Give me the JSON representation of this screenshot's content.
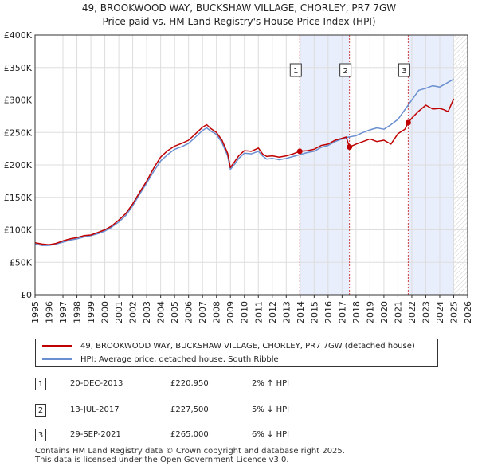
{
  "chart_data": {
    "type": "line",
    "title": "49, BROOKWOOD WAY, BUCKSHAW VILLAGE, CHORLEY, PR7 7GW",
    "subtitle": "Price paid vs. HM Land Registry's House Price Index (HPI)",
    "xlabel": "",
    "ylabel": "",
    "xlim": [
      1995,
      2026
    ],
    "ylim": [
      0,
      400000
    ],
    "x_ticks": [
      "1995",
      "1996",
      "1997",
      "1998",
      "1999",
      "2000",
      "2001",
      "2002",
      "2003",
      "2004",
      "2005",
      "2006",
      "2007",
      "2008",
      "2009",
      "2010",
      "2011",
      "2012",
      "2013",
      "2014",
      "2015",
      "2016",
      "2017",
      "2018",
      "2019",
      "2020",
      "2021",
      "2022",
      "2023",
      "2024",
      "2025",
      "2026"
    ],
    "y_ticks": [
      {
        "value": 0,
        "label": "£0"
      },
      {
        "value": 50000,
        "label": "£50K"
      },
      {
        "value": 100000,
        "label": "£100K"
      },
      {
        "value": 150000,
        "label": "£150K"
      },
      {
        "value": 200000,
        "label": "£200K"
      },
      {
        "value": 250000,
        "label": "£250K"
      },
      {
        "value": 300000,
        "label": "£300K"
      },
      {
        "value": 350000,
        "label": "£350K"
      },
      {
        "value": 400000,
        "label": "£400K"
      }
    ],
    "series": [
      {
        "name": "49, BROOKWOOD WAY, BUCKSHAW VILLAGE, CHORLEY, PR7 7GW (detached house)",
        "color": "#c00000",
        "x": [
          1995.0,
          1995.5,
          1996.0,
          1996.5,
          1997.0,
          1997.5,
          1998.0,
          1998.5,
          1999.0,
          1999.5,
          2000.0,
          2000.5,
          2001.0,
          2001.5,
          2002.0,
          2002.5,
          2003.0,
          2003.5,
          2004.0,
          2004.5,
          2005.0,
          2005.5,
          2006.0,
          2006.5,
          2007.0,
          2007.3,
          2007.6,
          2008.0,
          2008.4,
          2008.8,
          2009.0,
          2009.3,
          2009.6,
          2010.0,
          2010.5,
          2011.0,
          2011.3,
          2011.6,
          2012.0,
          2012.5,
          2013.0,
          2013.5,
          2013.97,
          2014.5,
          2015.0,
          2015.5,
          2016.0,
          2016.5,
          2017.0,
          2017.3,
          2017.53,
          2018.0,
          2018.5,
          2019.0,
          2019.5,
          2020.0,
          2020.5,
          2021.0,
          2021.5,
          2021.74,
          2022.0,
          2022.5,
          2023.0,
          2023.5,
          2024.0,
          2024.3,
          2024.6,
          2025.0
        ],
        "y": [
          80000,
          78000,
          77000,
          79000,
          83000,
          86000,
          88000,
          91000,
          92000,
          96000,
          100000,
          106000,
          115000,
          125000,
          140000,
          158000,
          175000,
          195000,
          212000,
          222000,
          229000,
          233000,
          238000,
          248000,
          258000,
          262000,
          256000,
          250000,
          238000,
          218000,
          196000,
          205000,
          214000,
          222000,
          221000,
          226000,
          217000,
          213000,
          214000,
          212000,
          214000,
          217000,
          220950,
          222000,
          224000,
          230000,
          232000,
          238000,
          241000,
          243000,
          227500,
          232000,
          236000,
          240000,
          236000,
          238000,
          232000,
          248000,
          255000,
          265000,
          272000,
          283000,
          292000,
          286000,
          287000,
          285000,
          282000,
          302000
        ]
      },
      {
        "name": "HPI: Average price, detached house, South Ribble",
        "color": "#6a8fd0",
        "x": [
          1995.0,
          1995.5,
          1996.0,
          1996.5,
          1997.0,
          1997.5,
          1998.0,
          1998.5,
          1999.0,
          1999.5,
          2000.0,
          2000.5,
          2001.0,
          2001.5,
          2002.0,
          2002.5,
          2003.0,
          2003.5,
          2004.0,
          2004.5,
          2005.0,
          2005.5,
          2006.0,
          2006.5,
          2007.0,
          2007.3,
          2007.6,
          2008.0,
          2008.4,
          2008.8,
          2009.0,
          2009.3,
          2009.6,
          2010.0,
          2010.5,
          2011.0,
          2011.3,
          2011.6,
          2012.0,
          2012.5,
          2013.0,
          2013.5,
          2014.0,
          2014.5,
          2015.0,
          2015.5,
          2016.0,
          2016.5,
          2017.0,
          2017.5,
          2018.0,
          2018.5,
          2019.0,
          2019.5,
          2020.0,
          2020.5,
          2021.0,
          2021.5,
          2022.0,
          2022.5,
          2023.0,
          2023.5,
          2024.0,
          2024.5,
          2025.0
        ],
        "y": [
          78000,
          76000,
          76000,
          78000,
          81000,
          84000,
          86000,
          89000,
          91000,
          94000,
          98000,
          104000,
          112000,
          122000,
          137000,
          155000,
          172000,
          190000,
          206000,
          216000,
          224000,
          228000,
          233000,
          243000,
          253000,
          257000,
          252000,
          247000,
          234000,
          214000,
          193000,
          201000,
          210000,
          218000,
          217000,
          221000,
          214000,
          209000,
          210000,
          208000,
          210000,
          213000,
          216000,
          219000,
          221000,
          227000,
          230000,
          236000,
          240000,
          243000,
          245000,
          250000,
          254000,
          257000,
          255000,
          262000,
          270000,
          285000,
          300000,
          315000,
          318000,
          322000,
          320000,
          326000,
          332000
        ]
      }
    ],
    "sale_markers": [
      {
        "label": "1",
        "x": 2013.97,
        "y": 220950
      },
      {
        "label": "2",
        "x": 2017.53,
        "y": 227500
      },
      {
        "label": "3",
        "x": 2021.74,
        "y": 265000
      }
    ],
    "shaded_spans": [
      [
        2013.97,
        2017.53
      ],
      [
        2021.74,
        2025.0
      ]
    ]
  },
  "legend": {
    "property_label": "49, BROOKWOOD WAY, BUCKSHAW VILLAGE, CHORLEY, PR7 7GW (detached house)",
    "hpi_label": "HPI: Average price, detached house, South Ribble"
  },
  "transactions": [
    {
      "num": "1",
      "date": "20-DEC-2013",
      "price": "£220,950",
      "hpi": "2% ↑ HPI"
    },
    {
      "num": "2",
      "date": "13-JUL-2017",
      "price": "£227,500",
      "hpi": "5% ↓ HPI"
    },
    {
      "num": "3",
      "date": "29-SEP-2021",
      "price": "£265,000",
      "hpi": "6% ↓ HPI"
    }
  ],
  "footer": {
    "line1": "Contains HM Land Registry data © Crown copyright and database right 2025.",
    "line2": "This data is licensed under the Open Government Licence v3.0."
  }
}
